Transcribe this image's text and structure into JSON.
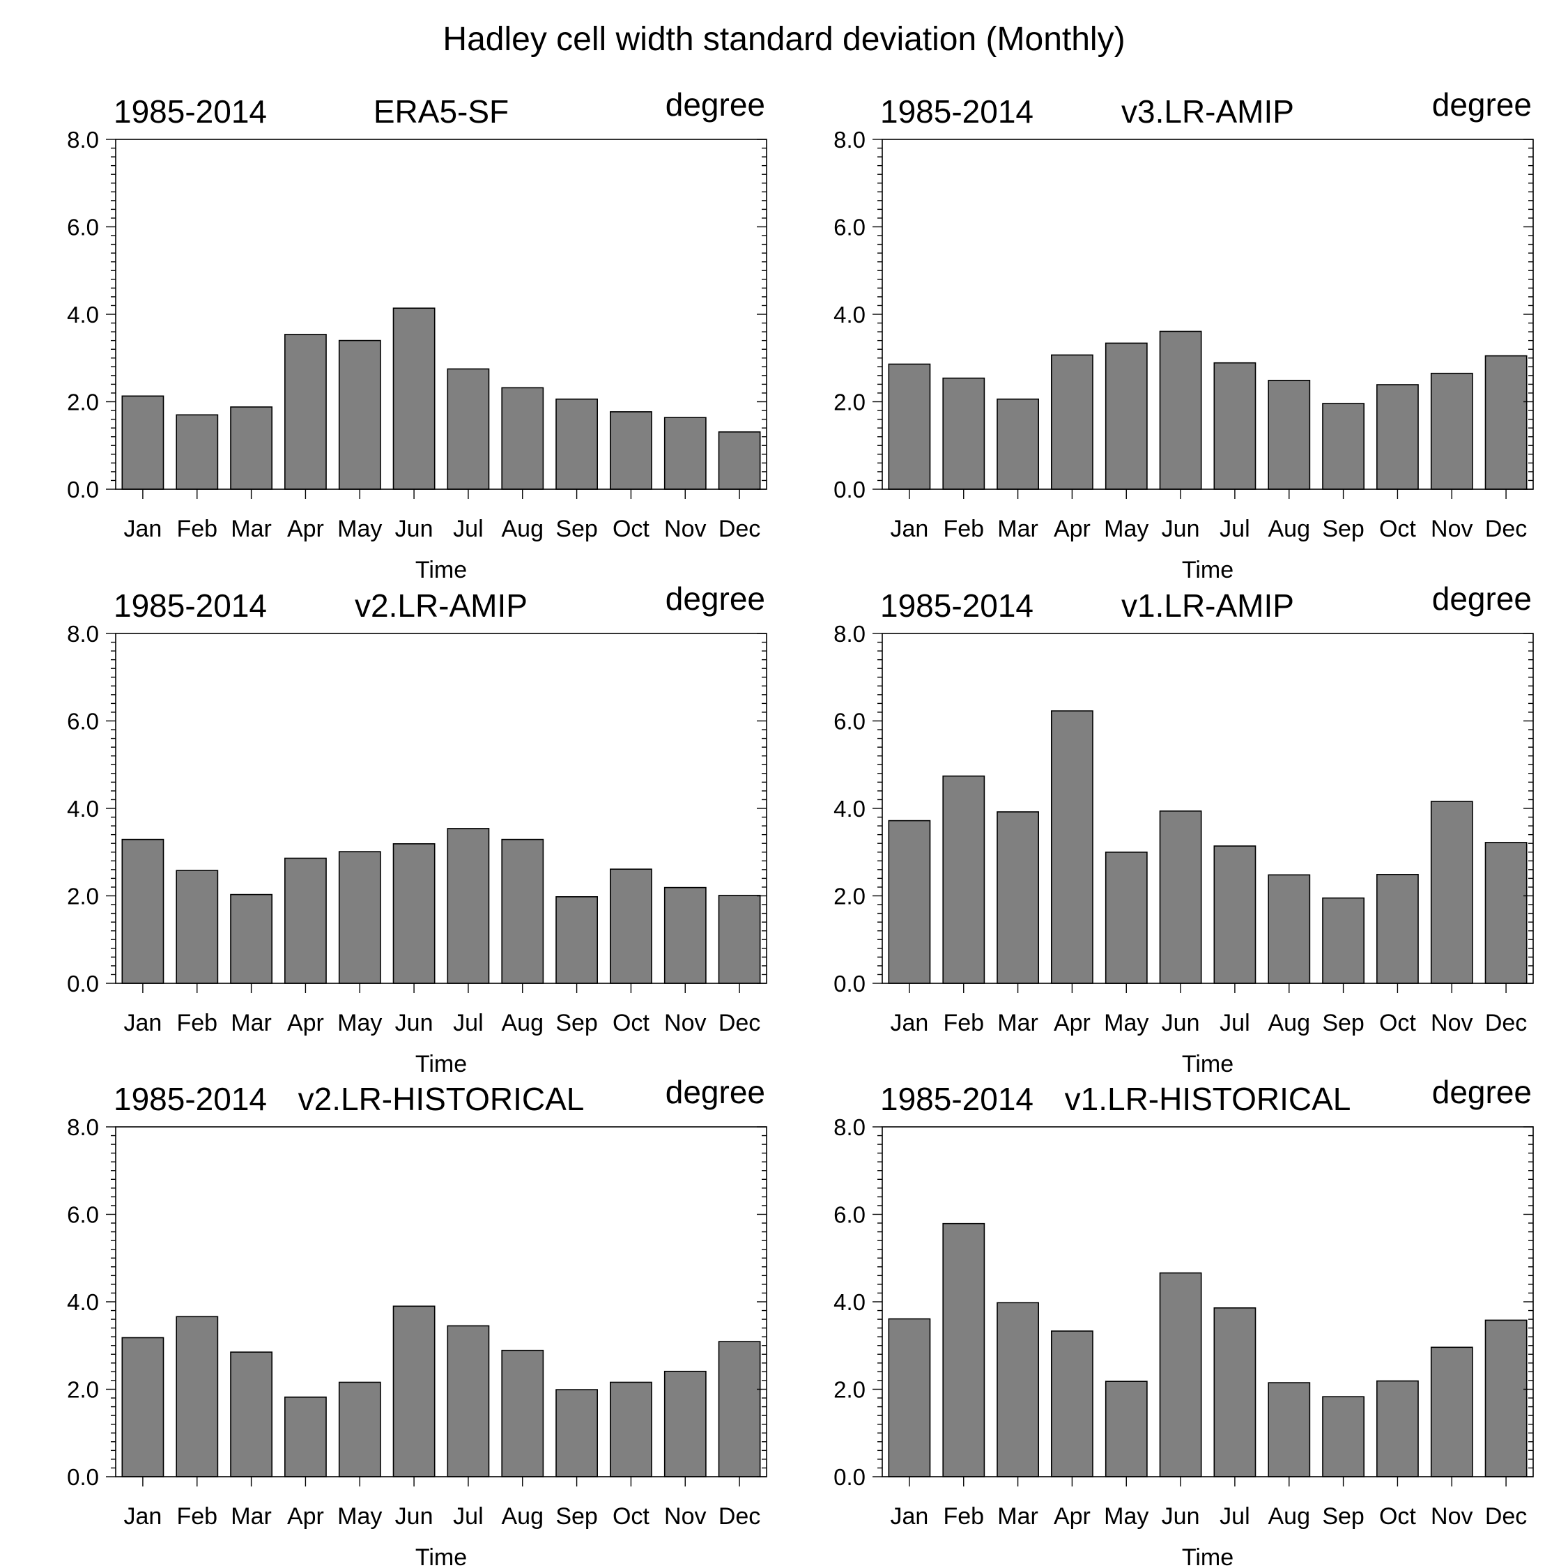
{
  "figure": {
    "title": "Hadley cell width standard deviation (Monthly)"
  },
  "chart_data": [
    {
      "type": "bar",
      "period": "1985-2014",
      "title": "ERA5-SF",
      "units": "degree",
      "xlabel": "Time",
      "ylabel": "",
      "ylim": [
        0,
        8
      ],
      "yticks": [
        "0.0",
        "2.0",
        "4.0",
        "6.0",
        "8.0"
      ],
      "categories": [
        "Jan",
        "Feb",
        "Mar",
        "Apr",
        "May",
        "Jun",
        "Jul",
        "Aug",
        "Sep",
        "Oct",
        "Nov",
        "Dec"
      ],
      "values": [
        2.13,
        1.7,
        1.88,
        3.54,
        3.4,
        4.14,
        2.75,
        2.32,
        2.06,
        1.77,
        1.64,
        1.31
      ],
      "bar_color": "#808080",
      "grid": false
    },
    {
      "type": "bar",
      "period": "1985-2014",
      "title": "v3.LR-AMIP",
      "units": "degree",
      "xlabel": "Time",
      "ylabel": "",
      "ylim": [
        0,
        8
      ],
      "yticks": [
        "0.0",
        "2.0",
        "4.0",
        "6.0",
        "8.0"
      ],
      "categories": [
        "Jan",
        "Feb",
        "Mar",
        "Apr",
        "May",
        "Jun",
        "Jul",
        "Aug",
        "Sep",
        "Oct",
        "Nov",
        "Dec"
      ],
      "values": [
        2.86,
        2.54,
        2.06,
        3.07,
        3.34,
        3.61,
        2.89,
        2.49,
        1.96,
        2.39,
        2.65,
        3.05
      ],
      "bar_color": "#808080",
      "grid": false
    },
    {
      "type": "bar",
      "period": "1985-2014",
      "title": "v2.LR-AMIP",
      "units": "degree",
      "xlabel": "Time",
      "ylabel": "",
      "ylim": [
        0,
        8
      ],
      "yticks": [
        "0.0",
        "2.0",
        "4.0",
        "6.0",
        "8.0"
      ],
      "categories": [
        "Jan",
        "Feb",
        "Mar",
        "Apr",
        "May",
        "Jun",
        "Jul",
        "Aug",
        "Sep",
        "Oct",
        "Nov",
        "Dec"
      ],
      "values": [
        3.29,
        2.58,
        2.03,
        2.86,
        3.01,
        3.19,
        3.54,
        3.29,
        1.98,
        2.61,
        2.19,
        2.01
      ],
      "bar_color": "#808080",
      "grid": false
    },
    {
      "type": "bar",
      "period": "1985-2014",
      "title": "v1.LR-AMIP",
      "units": "degree",
      "xlabel": "Time",
      "ylabel": "",
      "ylim": [
        0,
        8
      ],
      "yticks": [
        "0.0",
        "2.0",
        "4.0",
        "6.0",
        "8.0"
      ],
      "categories": [
        "Jan",
        "Feb",
        "Mar",
        "Apr",
        "May",
        "Jun",
        "Jul",
        "Aug",
        "Sep",
        "Oct",
        "Nov",
        "Dec"
      ],
      "values": [
        3.72,
        4.74,
        3.92,
        6.23,
        3.0,
        3.94,
        3.14,
        2.48,
        1.95,
        2.49,
        4.16,
        3.22
      ],
      "bar_color": "#808080",
      "grid": false
    },
    {
      "type": "bar",
      "period": "1985-2014",
      "title": "v2.LR-HISTORICAL",
      "units": "degree",
      "xlabel": "Time",
      "ylabel": "",
      "ylim": [
        0,
        8
      ],
      "yticks": [
        "0.0",
        "2.0",
        "4.0",
        "6.0",
        "8.0"
      ],
      "categories": [
        "Jan",
        "Feb",
        "Mar",
        "Apr",
        "May",
        "Jun",
        "Jul",
        "Aug",
        "Sep",
        "Oct",
        "Nov",
        "Dec"
      ],
      "values": [
        3.18,
        3.66,
        2.85,
        1.82,
        2.16,
        3.9,
        3.45,
        2.89,
        1.99,
        2.16,
        2.41,
        3.09
      ],
      "bar_color": "#808080",
      "grid": false
    },
    {
      "type": "bar",
      "period": "1985-2014",
      "title": "v1.LR-HISTORICAL",
      "units": "degree",
      "xlabel": "Time",
      "ylabel": "",
      "ylim": [
        0,
        8
      ],
      "yticks": [
        "0.0",
        "2.0",
        "4.0",
        "6.0",
        "8.0"
      ],
      "categories": [
        "Jan",
        "Feb",
        "Mar",
        "Apr",
        "May",
        "Jun",
        "Jul",
        "Aug",
        "Sep",
        "Oct",
        "Nov",
        "Dec"
      ],
      "values": [
        3.61,
        5.79,
        3.98,
        3.33,
        2.18,
        4.66,
        3.86,
        2.15,
        1.83,
        2.19,
        2.96,
        3.58
      ],
      "bar_color": "#808080",
      "grid": false
    }
  ]
}
